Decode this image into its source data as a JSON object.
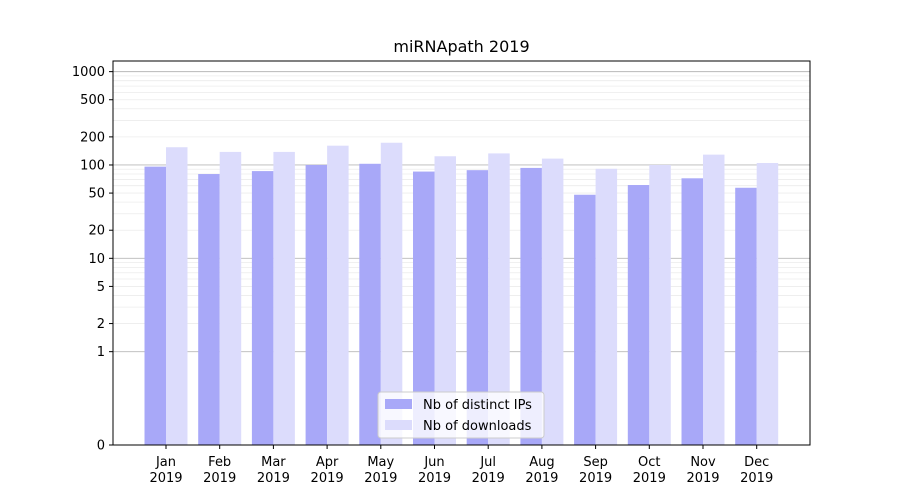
{
  "chart_data": {
    "type": "bar",
    "title": "miRNApath 2019",
    "xlabel": "",
    "ylabel": "",
    "yscale": "symlog",
    "ylim": [
      0,
      1300
    ],
    "yticks": [
      0,
      1,
      2,
      5,
      10,
      20,
      50,
      100,
      200,
      500,
      1000
    ],
    "grid": true,
    "legend_position": "bottom-center",
    "categories": [
      [
        "Jan",
        "2019"
      ],
      [
        "Feb",
        "2019"
      ],
      [
        "Mar",
        "2019"
      ],
      [
        "Apr",
        "2019"
      ],
      [
        "May",
        "2019"
      ],
      [
        "Jun",
        "2019"
      ],
      [
        "Jul",
        "2019"
      ],
      [
        "Aug",
        "2019"
      ],
      [
        "Sep",
        "2019"
      ],
      [
        "Oct",
        "2019"
      ],
      [
        "Nov",
        "2019"
      ],
      [
        "Dec",
        "2019"
      ]
    ],
    "series": [
      {
        "name": "Nb of distinct IPs",
        "color": "#a8a8f8",
        "values": [
          96,
          80,
          86,
          100,
          103,
          85,
          88,
          93,
          48,
          61,
          72,
          57
        ]
      },
      {
        "name": "Nb of downloads",
        "color": "#dcdcfc",
        "values": [
          155,
          138,
          138,
          161,
          173,
          124,
          133,
          117,
          91,
          100,
          129,
          105
        ]
      }
    ]
  }
}
